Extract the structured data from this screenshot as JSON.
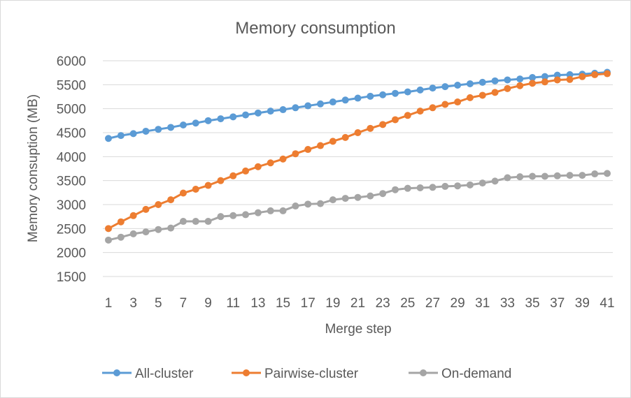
{
  "colors": {
    "all_cluster": "#5b9bd5",
    "pairwise_cluster": "#ed7d31",
    "on_demand": "#a5a5a5",
    "gridline": "#d9d9d9",
    "text": "#595959"
  },
  "chart_data": {
    "type": "line",
    "title": "Memory consumption",
    "xlabel": "Merge step",
    "ylabel": "Memory consuption (MB)",
    "ylim": [
      1500,
      6000
    ],
    "yticks": [
      1500,
      2000,
      2500,
      3000,
      3500,
      4000,
      4500,
      5000,
      5500,
      6000
    ],
    "x": [
      1,
      2,
      3,
      4,
      5,
      6,
      7,
      8,
      9,
      10,
      11,
      12,
      13,
      14,
      15,
      16,
      17,
      18,
      19,
      20,
      21,
      22,
      23,
      24,
      25,
      26,
      27,
      28,
      29,
      30,
      31,
      32,
      33,
      34,
      35,
      36,
      37,
      38,
      39,
      40,
      41
    ],
    "x_tick_labels": [
      1,
      3,
      5,
      7,
      9,
      11,
      13,
      15,
      17,
      19,
      21,
      23,
      25,
      27,
      29,
      31,
      33,
      35,
      37,
      39,
      41
    ],
    "grid": "horizontal",
    "legend_position": "bottom",
    "series": [
      {
        "name": "All-cluster",
        "color": "#5b9bd5",
        "values": [
          4380,
          4440,
          4480,
          4530,
          4570,
          4610,
          4660,
          4700,
          4750,
          4790,
          4830,
          4870,
          4910,
          4950,
          4980,
          5020,
          5060,
          5100,
          5140,
          5180,
          5220,
          5260,
          5290,
          5320,
          5350,
          5390,
          5430,
          5460,
          5490,
          5520,
          5550,
          5580,
          5600,
          5620,
          5650,
          5670,
          5700,
          5710,
          5720,
          5740,
          5760
        ]
      },
      {
        "name": "Pairwise-cluster",
        "color": "#ed7d31",
        "values": [
          2500,
          2640,
          2770,
          2900,
          3000,
          3100,
          3240,
          3320,
          3400,
          3500,
          3600,
          3700,
          3790,
          3870,
          3950,
          4060,
          4150,
          4230,
          4320,
          4400,
          4500,
          4590,
          4670,
          4770,
          4860,
          4950,
          5020,
          5090,
          5140,
          5230,
          5280,
          5340,
          5420,
          5480,
          5530,
          5560,
          5600,
          5610,
          5670,
          5710,
          5730
        ]
      },
      {
        "name": "On-demand",
        "color": "#a5a5a5",
        "values": [
          2260,
          2320,
          2390,
          2430,
          2480,
          2510,
          2650,
          2650,
          2650,
          2750,
          2770,
          2790,
          2830,
          2870,
          2870,
          2970,
          3010,
          3020,
          3100,
          3130,
          3150,
          3180,
          3230,
          3310,
          3340,
          3350,
          3360,
          3380,
          3390,
          3410,
          3450,
          3490,
          3560,
          3580,
          3590,
          3590,
          3600,
          3610,
          3610,
          3640,
          3650
        ]
      }
    ]
  }
}
